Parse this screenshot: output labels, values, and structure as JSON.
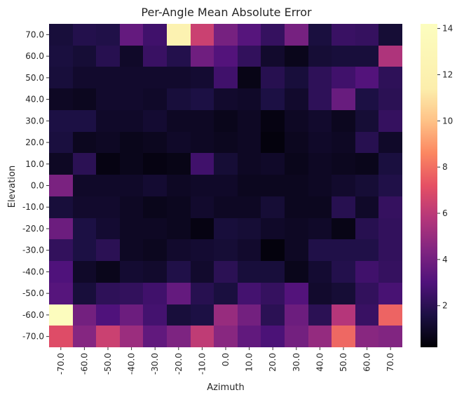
{
  "chart_data": {
    "type": "heatmap",
    "title": "Per-Angle Mean Absolute Error",
    "xlabel": "Azimuth",
    "ylabel": "Elevation",
    "x_categories": [
      "-70.0",
      "-60.0",
      "-50.0",
      "-40.0",
      "-30.0",
      "-20.0",
      "-10.0",
      "0.0",
      "10.0",
      "20.0",
      "30.0",
      "40.0",
      "50.0",
      "60.0",
      "70.0"
    ],
    "y_categories": [
      "70.0",
      "60.0",
      "50.0",
      "40.0",
      "30.0",
      "20.0",
      "10.0",
      "0.0",
      "-10.0",
      "-20.0",
      "-30.0",
      "-40.0",
      "-50.0",
      "-60.0",
      "-70.0"
    ],
    "colormap": "magma",
    "color_range": [
      0.2,
      14.2
    ],
    "colorbar_ticks": [
      2,
      4,
      6,
      8,
      10,
      12,
      14
    ],
    "values": [
      [
        1.4,
        1.8,
        1.7,
        3.6,
        2.6,
        12.2,
        6.4,
        4.1,
        3.2,
        2.3,
        4.1,
        1.5,
        2.4,
        2.3,
        1.3
      ],
      [
        1.5,
        1.3,
        1.9,
        1.0,
        2.4,
        1.8,
        3.9,
        3.1,
        2.2,
        1.1,
        0.7,
        1.3,
        1.4,
        1.4,
        5.6
      ],
      [
        1.4,
        1.1,
        1.1,
        1.1,
        1.1,
        1.1,
        1.2,
        2.6,
        0.6,
        1.9,
        1.4,
        2.1,
        2.6,
        3.1,
        2.1
      ],
      [
        0.9,
        0.8,
        1.1,
        1.1,
        1.0,
        1.4,
        1.6,
        1.1,
        1.0,
        1.6,
        1.1,
        2.1,
        3.7,
        1.6,
        2.0
      ],
      [
        1.6,
        1.6,
        1.0,
        1.0,
        1.2,
        0.9,
        0.9,
        0.7,
        0.9,
        0.5,
        0.9,
        1.1,
        0.8,
        1.3,
        2.3
      ],
      [
        1.5,
        0.8,
        0.9,
        0.7,
        0.8,
        1.0,
        0.9,
        0.8,
        0.9,
        0.4,
        0.8,
        1.0,
        0.9,
        1.9,
        1.0
      ],
      [
        0.9,
        2.0,
        0.5,
        0.7,
        0.5,
        0.6,
        2.6,
        1.3,
        0.9,
        1.0,
        0.7,
        0.9,
        0.8,
        0.7,
        1.5
      ],
      [
        4.2,
        1.0,
        1.0,
        1.0,
        1.2,
        0.9,
        1.0,
        1.0,
        0.8,
        0.8,
        0.8,
        0.9,
        1.1,
        1.3,
        1.7
      ],
      [
        1.4,
        1.1,
        1.1,
        0.9,
        0.7,
        0.8,
        1.1,
        0.9,
        0.9,
        1.3,
        0.8,
        0.8,
        1.9,
        1.0,
        2.3
      ],
      [
        3.8,
        1.6,
        1.2,
        0.9,
        0.9,
        0.8,
        0.5,
        1.4,
        1.3,
        1.0,
        0.9,
        1.0,
        0.6,
        1.9,
        2.2
      ],
      [
        2.2,
        1.6,
        2.0,
        0.9,
        0.8,
        1.1,
        1.2,
        1.3,
        1.1,
        0.4,
        0.9,
        1.7,
        1.7,
        1.7,
        2.2
      ],
      [
        3.0,
        1.0,
        0.7,
        1.2,
        1.1,
        1.7,
        1.1,
        2.0,
        1.4,
        1.4,
        0.7,
        1.2,
        1.8,
        2.6,
        2.3
      ],
      [
        3.2,
        1.4,
        2.1,
        2.2,
        2.6,
        3.6,
        1.9,
        1.5,
        2.7,
        2.3,
        3.1,
        1.1,
        1.3,
        2.2,
        2.8
      ],
      [
        14.1,
        4.0,
        3.0,
        3.8,
        2.7,
        1.4,
        1.6,
        5.0,
        4.0,
        2.0,
        3.8,
        2.0,
        5.8,
        2.4,
        7.7
      ],
      [
        7.0,
        4.5,
        6.4,
        5.1,
        3.5,
        4.3,
        6.1,
        4.6,
        3.5,
        2.9,
        4.0,
        4.9,
        7.8,
        4.6,
        4.4
      ]
    ]
  }
}
